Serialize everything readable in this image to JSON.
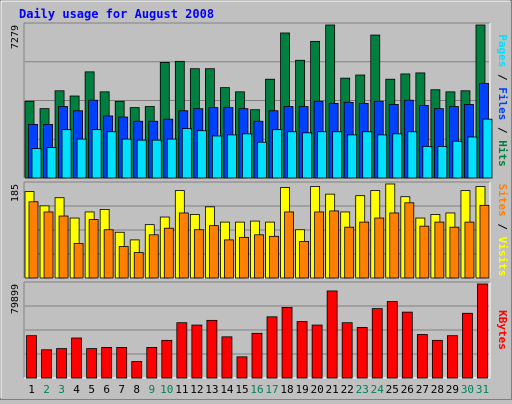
{
  "chart_data": {
    "type": "bar",
    "title": "Daily usage for August 2008",
    "categories": [
      "1",
      "2",
      "3",
      "4",
      "5",
      "6",
      "7",
      "8",
      "9",
      "10",
      "11",
      "12",
      "13",
      "14",
      "15",
      "16",
      "17",
      "18",
      "19",
      "20",
      "21",
      "22",
      "23",
      "24",
      "25",
      "26",
      "27",
      "28",
      "29",
      "30",
      "31"
    ],
    "weekend_days": [
      "2",
      "3",
      "9",
      "10",
      "16",
      "17",
      "23",
      "24",
      "30",
      "31"
    ],
    "panels": [
      {
        "id": "hits",
        "max_label": "7279",
        "ylim": [
          0,
          7279
        ],
        "series": [
          {
            "name": "Hits",
            "color": "#008040",
            "values": [
              3650,
              3300,
              4150,
              3900,
              5050,
              4100,
              3650,
              3350,
              3400,
              5500,
              5550,
              5200,
              5200,
              4300,
              4100,
              3250,
              4700,
              6900,
              5600,
              6500,
              7279,
              4750,
              4900,
              6800,
              4700,
              4950,
              5000,
              4200,
              4100,
              4150,
              7279
            ]
          },
          {
            "name": "Files",
            "color": "#0040FF",
            "values": [
              2550,
              2550,
              3400,
              3200,
              3700,
              2950,
              2900,
              2700,
              2700,
              2800,
              3200,
              3300,
              3350,
              3350,
              3300,
              2700,
              3200,
              3400,
              3400,
              3650,
              3550,
              3600,
              3550,
              3650,
              3500,
              3700,
              3450,
              3300,
              3400,
              3500,
              4500
            ]
          },
          {
            "name": "Pages",
            "color": "#00E0FF",
            "values": [
              1400,
              1450,
              2300,
              1850,
              2300,
              2200,
              1850,
              1800,
              1800,
              1850,
              2350,
              2250,
              2000,
              2050,
              2100,
              1700,
              2300,
              2200,
              2150,
              2200,
              2200,
              2050,
              2200,
              2050,
              2100,
              2200,
              1500,
              1500,
              1750,
              1950,
              2800
            ]
          }
        ]
      },
      {
        "id": "visits",
        "max_label": "185",
        "ylim": [
          0,
          185
        ],
        "series": [
          {
            "name": "Visits",
            "color": "#FFFF00",
            "values": [
              170,
              142,
              158,
              118,
              130,
              135,
              90,
              75,
              105,
              120,
              172,
              125,
              140,
              110,
              110,
              112,
              110,
              178,
              95,
              180,
              165,
              130,
              162,
              172,
              185,
              160,
              118,
              125,
              128,
              172,
              180
            ]
          },
          {
            "name": "Sites",
            "color": "#FF8000",
            "values": [
              150,
              130,
              122,
              68,
              115,
              95,
              62,
              50,
              85,
              98,
              128,
              95,
              103,
              75,
              80,
              85,
              82,
              130,
              72,
              130,
              132,
              100,
              110,
              118,
              128,
              148,
              102,
              110,
              100,
              110,
              143
            ]
          }
        ]
      },
      {
        "id": "kbytes",
        "max_label": "79899",
        "ylim": [
          0,
          79899
        ],
        "series": [
          {
            "name": "KBytes",
            "color": "#FF0000",
            "values": [
              36000,
              24000,
              25000,
              34000,
              25000,
              26000,
              26000,
              14000,
              26000,
              32000,
              47000,
              45000,
              49000,
              35000,
              18000,
              38000,
              52000,
              60000,
              48000,
              45000,
              74000,
              47000,
              43000,
              59000,
              65000,
              56000,
              37000,
              32000,
              36000,
              55000,
              79899
            ]
          }
        ]
      }
    ],
    "side_labels": [
      {
        "parts": [
          {
            "text": "Pages",
            "color": "#00E0FF"
          },
          {
            "text": " / ",
            "color": "#000000"
          },
          {
            "text": "Files",
            "color": "#0040FF"
          },
          {
            "text": " / ",
            "color": "#000000"
          },
          {
            "text": "Hits",
            "color": "#008040"
          }
        ]
      },
      {
        "parts": [
          {
            "text": "Sites",
            "color": "#FF8000"
          },
          {
            "text": " / ",
            "color": "#000000"
          },
          {
            "text": "Visits",
            "color": "#FFFF00"
          }
        ]
      },
      {
        "parts": [
          {
            "text": "KBytes",
            "color": "#FF0000"
          }
        ]
      }
    ],
    "colors": {
      "background": "#C0C0C0",
      "title": "#0000FF",
      "weekday_label": "#000000",
      "weekend_label": "#00805C"
    }
  }
}
